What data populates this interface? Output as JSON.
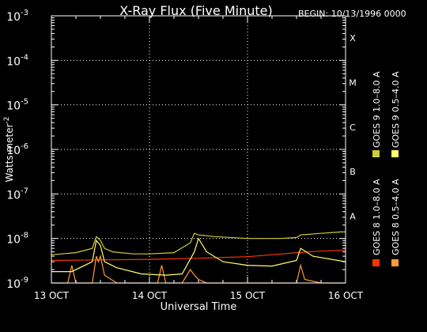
{
  "chart_data": {
    "type": "line",
    "title": "X-Ray Flux (Five Minute)",
    "begin_label": "BEGIN: 10/13/1996 0000",
    "xlabel": "Universal Time",
    "ylabel": "Watts meter",
    "ylabel_sup": "-2",
    "y_scale": "log",
    "ylim": [
      1e-09,
      0.001
    ],
    "y_ticks": [
      {
        "value": 0.001,
        "base": "10",
        "exp": "-3"
      },
      {
        "value": 0.0001,
        "base": "10",
        "exp": "-4"
      },
      {
        "value": 1e-05,
        "base": "10",
        "exp": "-5"
      },
      {
        "value": 1e-06,
        "base": "10",
        "exp": "-6"
      },
      {
        "value": 1e-07,
        "base": "10",
        "exp": "-7"
      },
      {
        "value": 1e-08,
        "base": "10",
        "exp": "-8"
      },
      {
        "value": 1e-09,
        "base": "10",
        "exp": "-9"
      }
    ],
    "xlim": [
      "1996-10-13T00:00",
      "1996-10-16T00:00"
    ],
    "x_ticks": [
      {
        "x": "1996-10-13T00:00",
        "label": "13 OCT"
      },
      {
        "x": "1996-10-14T00:00",
        "label": "14 OCT"
      },
      {
        "x": "1996-10-15T00:00",
        "label": "15 OCT"
      },
      {
        "x": "1996-10-16T00:00",
        "label": "16 OCT"
      }
    ],
    "flare_classes": [
      {
        "label": "X",
        "value": 0.0001
      },
      {
        "label": "M",
        "value": 1e-05
      },
      {
        "label": "C",
        "value": 1e-06
      },
      {
        "label": "B",
        "value": 1e-07
      },
      {
        "label": "A",
        "value": 1e-08
      }
    ],
    "grid": "dotted",
    "legend_position": "right, vertical",
    "series": [
      {
        "name": "GOES 8 1.0–8.0 A",
        "color": "#ff3300",
        "x": [
          "1996-10-13T00:00",
          "1996-10-13T12:00",
          "1996-10-14T00:00",
          "1996-10-14T12:00",
          "1996-10-15T00:00",
          "1996-10-15T06:00",
          "1996-10-15T12:00",
          "1996-10-15T18:00",
          "1996-10-16T00:00"
        ],
        "values": [
          3.2e-09,
          3.3e-09,
          3.4e-09,
          3.6e-09,
          3.9e-09,
          4.3e-09,
          4.8e-09,
          5.2e-09,
          5.5e-09
        ]
      },
      {
        "name": "GOES 8 0.5–4.0 A",
        "color": "#ff9933",
        "x": [
          "1996-10-13T00:00",
          "1996-10-13T04:00",
          "1996-10-13T05:00",
          "1996-10-13T06:00",
          "1996-10-13T10:00",
          "1996-10-13T11:00",
          "1996-10-13T11:30",
          "1996-10-13T12:00",
          "1996-10-13T13:00",
          "1996-10-13T16:00",
          "1996-10-14T02:00",
          "1996-10-14T03:00",
          "1996-10-14T04:00",
          "1996-10-14T08:00",
          "1996-10-14T10:00",
          "1996-10-14T11:00",
          "1996-10-14T12:00",
          "1996-10-14T14:00",
          "1996-10-14T22:00",
          "1996-10-15T12:00",
          "1996-10-15T13:00",
          "1996-10-15T14:00",
          "1996-10-15T18:00",
          "1996-10-16T00:00"
        ],
        "values": [
          1e-09,
          1e-09,
          2.5e-09,
          1e-09,
          1e-09,
          4e-09,
          3e-09,
          4e-09,
          1.5e-09,
          1e-09,
          1e-09,
          2.5e-09,
          1e-09,
          1e-09,
          2e-09,
          1.5e-09,
          1.2e-09,
          1e-09,
          1e-09,
          1e-09,
          2.5e-09,
          1.2e-09,
          1e-09,
          1e-09
        ]
      },
      {
        "name": "GOES 9 1.0–8.0 A",
        "color": "#cccc33",
        "x": [
          "1996-10-13T00:00",
          "1996-10-13T06:00",
          "1996-10-13T10:00",
          "1996-10-13T11:00",
          "1996-10-13T12:00",
          "1996-10-13T13:00",
          "1996-10-13T15:00",
          "1996-10-13T20:00",
          "1996-10-14T00:00",
          "1996-10-14T06:00",
          "1996-10-14T10:00",
          "1996-10-14T11:00",
          "1996-10-14T12:00",
          "1996-10-14T16:00",
          "1996-10-15T00:00",
          "1996-10-15T08:00",
          "1996-10-15T12:00",
          "1996-10-15T13:00",
          "1996-10-15T18:00",
          "1996-10-15T23:00",
          "1996-10-16T00:00"
        ],
        "values": [
          4.3e-09,
          4.8e-09,
          6e-09,
          1.1e-08,
          9e-09,
          6e-09,
          5e-09,
          4.5e-09,
          4.5e-09,
          4.8e-09,
          8e-09,
          1.3e-08,
          1.2e-08,
          1.1e-08,
          1e-08,
          1e-08,
          1.05e-08,
          1.2e-08,
          1.3e-08,
          1.4e-08,
          1.4e-08
        ]
      },
      {
        "name": "GOES 9 0.5–4.0 A",
        "color": "#ffff66",
        "x": [
          "1996-10-13T00:00",
          "1996-10-13T05:00",
          "1996-10-13T10:00",
          "1996-10-13T11:00",
          "1996-10-13T12:00",
          "1996-10-13T13:00",
          "1996-10-13T16:00",
          "1996-10-13T22:00",
          "1996-10-14T04:00",
          "1996-10-14T08:00",
          "1996-10-14T11:00",
          "1996-10-14T12:00",
          "1996-10-14T14:00",
          "1996-10-14T18:00",
          "1996-10-15T00:00",
          "1996-10-15T06:00",
          "1996-10-15T12:00",
          "1996-10-15T13:00",
          "1996-10-15T16:00",
          "1996-10-16T00:00"
        ],
        "values": [
          1.8e-09,
          1.8e-09,
          3e-09,
          9e-09,
          7e-09,
          3e-09,
          2.2e-09,
          1.6e-09,
          1.5e-09,
          1.6e-09,
          5e-09,
          1e-08,
          5e-09,
          3e-09,
          2.5e-09,
          2.4e-09,
          3.2e-09,
          6e-09,
          4e-09,
          3e-09
        ]
      }
    ]
  }
}
